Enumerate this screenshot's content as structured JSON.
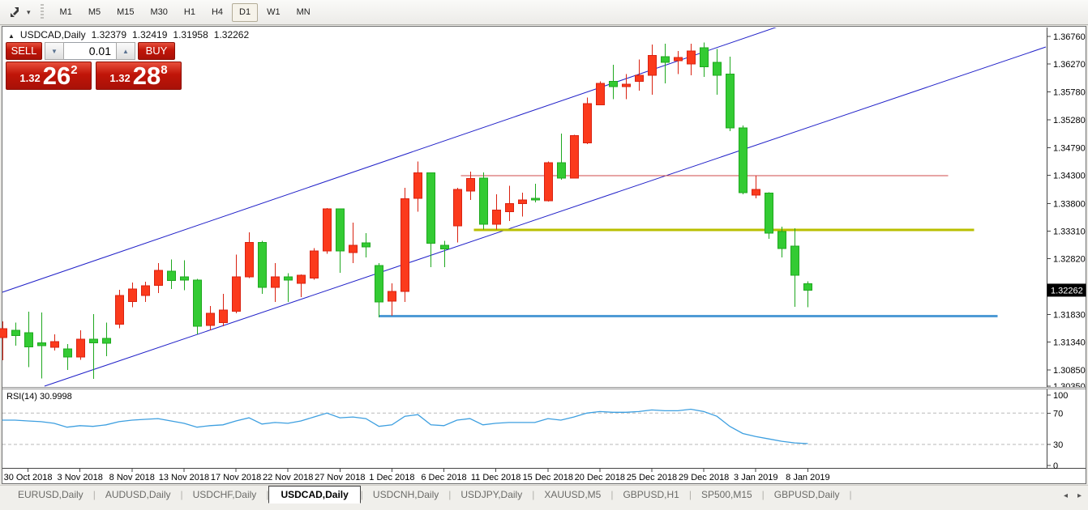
{
  "toolbar": {
    "icon": "chart-shift-icon",
    "caret": "▾",
    "timeframes": [
      "M1",
      "M5",
      "M15",
      "M30",
      "H1",
      "H4",
      "D1",
      "W1",
      "MN"
    ],
    "active_timeframe": "D1"
  },
  "chart": {
    "header": {
      "collapse": "▲",
      "symbol": "USDCAD,Daily",
      "open": "1.32379",
      "high": "1.32419",
      "low": "1.31958",
      "close": "1.32262"
    },
    "trade": {
      "sell": "SELL",
      "buy": "BUY",
      "volume": "0.01",
      "spin_down": "▼",
      "spin_up": "▲",
      "bid_small": "1.32",
      "bid_big": "26",
      "bid_sup": "2",
      "ask_small": "1.32",
      "ask_big": "28",
      "ask_sup": "8"
    },
    "y_axis": {
      "labels": [
        "1.36760",
        "1.36270",
        "1.35780",
        "1.35280",
        "1.34790",
        "1.34300",
        "1.33800",
        "1.33310",
        "1.32820",
        "1.31830",
        "1.31340",
        "1.30850",
        "1.30350"
      ],
      "current_price": "1.32262"
    },
    "x_axis": {
      "labels": [
        "30 Oct 2018",
        "3 Nov 2018",
        "8 Nov 2018",
        "13 Nov 2018",
        "17 Nov 2018",
        "22 Nov 2018",
        "27 Nov 2018",
        "1 Dec 2018",
        "6 Dec 2018",
        "11 Dec 2018",
        "15 Dec 2018",
        "20 Dec 2018",
        "25 Dec 2018",
        "29 Dec 2018",
        "3 Jan 2019",
        "8 Jan 2019"
      ]
    },
    "rsi_label": {
      "name": "RSI(14)",
      "value": "30.9998"
    },
    "rsi_axis": {
      "labels": [
        "100",
        "70",
        "30",
        "0"
      ]
    }
  },
  "tabs": {
    "items": [
      "EURUSD,Daily",
      "AUDUSD,Daily",
      "USDCHF,Daily",
      "USDCAD,Daily",
      "USDCNH,Daily",
      "USDJPY,Daily",
      "XAUUSD,M5",
      "GBPUSD,H1",
      "SP500,M15",
      "GBPUSD,Daily"
    ],
    "active": "USDCAD,Daily",
    "scroll_left": "◂",
    "scroll_right": "▸"
  },
  "chart_data": {
    "type": "candlestick",
    "symbol": "USDCAD",
    "timeframe": "Daily",
    "price_axis": {
      "min": 1.3035,
      "max": 1.3676,
      "step": 0.0049,
      "last_price": 1.32262
    },
    "colors": {
      "up": "#fb3a1c",
      "up_stroke": "#d92211",
      "down": "#33cb33",
      "down_stroke": "#1fa81f",
      "channel": "#2020c8",
      "rsi": "#3d9fe0",
      "tag_bg": "#000000",
      "tag_text": "#ffffff"
    },
    "candles": [
      [
        1.3142,
        1.3171,
        1.3102,
        1.3158
      ],
      [
        1.3155,
        1.3169,
        1.3128,
        1.3146
      ],
      [
        1.3151,
        1.3188,
        1.309,
        1.3126
      ],
      [
        1.3133,
        1.3187,
        1.307,
        1.3128
      ],
      [
        1.3125,
        1.3148,
        1.3119,
        1.3135
      ],
      [
        1.3122,
        1.3131,
        1.3085,
        1.3108
      ],
      [
        1.3108,
        1.3155,
        1.3103,
        1.3139
      ],
      [
        1.3139,
        1.3184,
        1.3069,
        1.3133
      ],
      [
        1.3141,
        1.3169,
        1.3109,
        1.3132
      ],
      [
        1.3166,
        1.3227,
        1.3159,
        1.3217
      ],
      [
        1.3206,
        1.324,
        1.3196,
        1.3228
      ],
      [
        1.3217,
        1.3241,
        1.3205,
        1.3234
      ],
      [
        1.3235,
        1.3274,
        1.3221,
        1.3261
      ],
      [
        1.326,
        1.3281,
        1.3228,
        1.3243
      ],
      [
        1.325,
        1.3279,
        1.3226,
        1.3244
      ],
      [
        1.3244,
        1.3246,
        1.3148,
        1.3162
      ],
      [
        1.3164,
        1.3198,
        1.3155,
        1.3185
      ],
      [
        1.3169,
        1.322,
        1.3162,
        1.3191
      ],
      [
        1.3189,
        1.3289,
        1.3185,
        1.325
      ],
      [
        1.325,
        1.3329,
        1.3248,
        1.3311
      ],
      [
        1.3311,
        1.3314,
        1.322,
        1.3231
      ],
      [
        1.3231,
        1.3274,
        1.3205,
        1.325
      ],
      [
        1.325,
        1.3256,
        1.3205,
        1.3244
      ],
      [
        1.3238,
        1.3254,
        1.3214,
        1.3253
      ],
      [
        1.3248,
        1.3301,
        1.3245,
        1.3296
      ],
      [
        1.3296,
        1.3372,
        1.3291,
        1.337
      ],
      [
        1.337,
        1.3371,
        1.3257,
        1.3296
      ],
      [
        1.3293,
        1.3346,
        1.3274,
        1.3306
      ],
      [
        1.331,
        1.3327,
        1.3284,
        1.3303
      ],
      [
        1.327,
        1.3274,
        1.3178,
        1.3205
      ],
      [
        1.3207,
        1.3238,
        1.3181,
        1.3224
      ],
      [
        1.3224,
        1.3408,
        1.3205,
        1.3388
      ],
      [
        1.3389,
        1.3454,
        1.3365,
        1.3434
      ],
      [
        1.3434,
        1.3435,
        1.3267,
        1.3309
      ],
      [
        1.3306,
        1.3314,
        1.3267,
        1.3299
      ],
      [
        1.334,
        1.3408,
        1.3311,
        1.3405
      ],
      [
        1.3402,
        1.3436,
        1.3386,
        1.3424
      ],
      [
        1.3425,
        1.3435,
        1.3334,
        1.3343
      ],
      [
        1.3343,
        1.3396,
        1.3334,
        1.3368
      ],
      [
        1.3365,
        1.3411,
        1.3349,
        1.338
      ],
      [
        1.338,
        1.3399,
        1.3357,
        1.3386
      ],
      [
        1.3389,
        1.3415,
        1.3382,
        1.3386
      ],
      [
        1.3385,
        1.3454,
        1.3383,
        1.3452
      ],
      [
        1.3452,
        1.3504,
        1.3422,
        1.3425
      ],
      [
        1.3425,
        1.3502,
        1.3424,
        1.35
      ],
      [
        1.3487,
        1.3568,
        1.3485,
        1.3557
      ],
      [
        1.3555,
        1.3596,
        1.3554,
        1.3593
      ],
      [
        1.3596,
        1.3626,
        1.3565,
        1.3587
      ],
      [
        1.3587,
        1.3609,
        1.3565,
        1.3591
      ],
      [
        1.3596,
        1.3635,
        1.358,
        1.3607
      ],
      [
        1.3607,
        1.3662,
        1.3573,
        1.3642
      ],
      [
        1.364,
        1.3663,
        1.3593,
        1.363
      ],
      [
        1.3633,
        1.365,
        1.3609,
        1.3639
      ],
      [
        1.3627,
        1.3663,
        1.3607,
        1.365
      ],
      [
        1.3656,
        1.3665,
        1.3604,
        1.3622
      ],
      [
        1.363,
        1.3654,
        1.3573,
        1.3607
      ],
      [
        1.3609,
        1.364,
        1.3508,
        1.3514
      ],
      [
        1.3514,
        1.3518,
        1.3396,
        1.3399
      ],
      [
        1.3395,
        1.3429,
        1.3389,
        1.3405
      ],
      [
        1.3398,
        1.34,
        1.3317,
        1.3327
      ],
      [
        1.333,
        1.3339,
        1.3284,
        1.33
      ],
      [
        1.3304,
        1.3336,
        1.3197,
        1.3253
      ],
      [
        1.32379,
        1.32419,
        1.31958,
        1.32262
      ]
    ],
    "trendlines": [
      {
        "name": "channel-upper",
        "color": "#2020c8",
        "width": 1,
        "points": [
          [
            -0.16,
            1.32211
          ],
          [
            60.23,
            1.36975
          ]
        ]
      },
      {
        "name": "channel-lower",
        "color": "#2020c8",
        "width": 1,
        "points": [
          [
            3.27,
            1.30561
          ],
          [
            80.32,
            1.36573
          ]
        ]
      }
    ],
    "hlines": [
      {
        "name": "resistance-red",
        "price": 1.3429,
        "color": "#cf4b4b",
        "width": 1,
        "from_bar": 35.3,
        "to_bar": 72.8
      },
      {
        "name": "support-olive",
        "price": 1.3333,
        "color": "#b9bf00",
        "width": 3,
        "from_bar": 36.3,
        "to_bar": 74.8
      },
      {
        "name": "support-blue",
        "price": 1.318,
        "color": "#4f9bd5",
        "width": 3,
        "from_bar": 29.05,
        "to_bar": 76.6
      }
    ],
    "rsi": {
      "period": 14,
      "current": 30.9998,
      "levels": [
        100,
        70,
        30,
        0
      ],
      "dashed_levels": [
        70,
        30
      ],
      "color": "#3d9fe0",
      "values": [
        61,
        61,
        60,
        59,
        57,
        52,
        54,
        53,
        55,
        59,
        61,
        62,
        63,
        60,
        57,
        52,
        54,
        55,
        60,
        64,
        56,
        58,
        57,
        60,
        65,
        70,
        64,
        65,
        63,
        53,
        55,
        66,
        68,
        55,
        54,
        61,
        63,
        55,
        57,
        58,
        58,
        58,
        63,
        61,
        65,
        70,
        72,
        71,
        71,
        72,
        74,
        73,
        73,
        75,
        72,
        66,
        53,
        44,
        40,
        37,
        34,
        32,
        31
      ]
    }
  }
}
